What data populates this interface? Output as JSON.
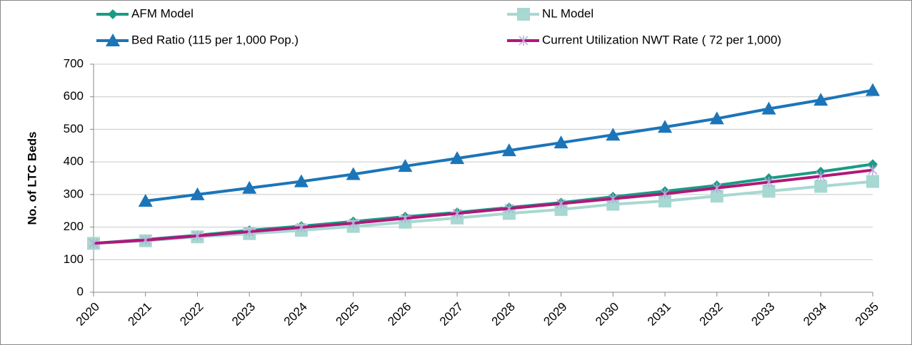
{
  "chart_data": {
    "type": "line",
    "y_label": "No. of LTC Beds",
    "categories": [
      "2020",
      "2021",
      "2022",
      "2023",
      "2024",
      "2025",
      "2026",
      "2027",
      "2028",
      "2029",
      "2030",
      "2031",
      "2032",
      "2033",
      "2034",
      "2035"
    ],
    "series": [
      {
        "name": "AFM Model",
        "color": "#1a9b84",
        "marker": "diamond",
        "values": [
          150,
          162,
          175,
          190,
          203,
          217,
          232,
          245,
          260,
          275,
          293,
          310,
          328,
          350,
          370,
          393
        ]
      },
      {
        "name": "NL Model",
        "color": "#a7d8d2",
        "marker": "square",
        "values": [
          150,
          158,
          170,
          180,
          190,
          202,
          215,
          228,
          242,
          254,
          270,
          280,
          295,
          310,
          325,
          340
        ]
      },
      {
        "name": "Bed Ratio (115 per 1,000 Pop.)",
        "color": "#1b75b8",
        "marker": "triangle",
        "values": [
          null,
          280,
          300,
          320,
          340,
          362,
          387,
          411,
          435,
          459,
          483,
          507,
          533,
          563,
          590,
          620
        ]
      },
      {
        "name": "Current Utilization NWT Rate ( 72 per 1,000)",
        "color": "#b1177b",
        "marker": "x",
        "values": [
          150,
          160,
          173,
          186,
          199,
          212,
          227,
          242,
          257,
          272,
          287,
          302,
          320,
          338,
          356,
          375
        ]
      }
    ],
    "ylim": [
      0,
      700
    ],
    "yticks": [
      0,
      100,
      200,
      300,
      400,
      500,
      600,
      700
    ],
    "grid": true
  }
}
